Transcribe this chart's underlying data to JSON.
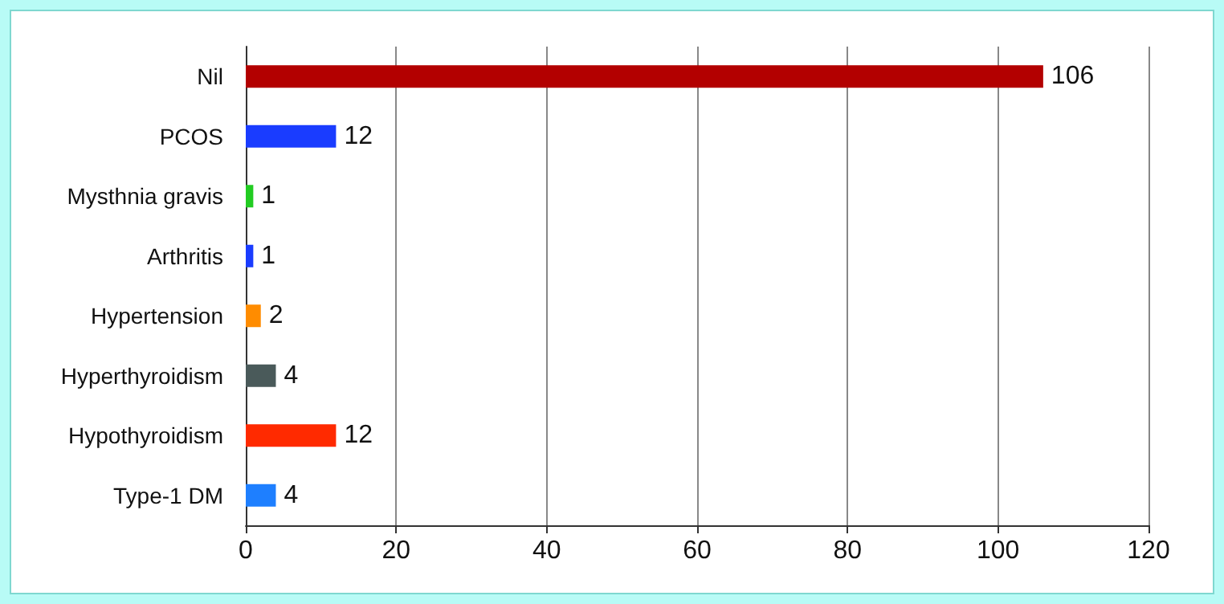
{
  "chart_data": {
    "type": "bar",
    "orientation": "horizontal",
    "categories": [
      "Nil",
      "PCOS",
      "Mysthnia gravis",
      "Arthritis",
      "Hypertension",
      "Hyperthyroidism",
      "Hypothyroidism",
      "Type-1 DM"
    ],
    "values": [
      106,
      12,
      1,
      1,
      2,
      4,
      12,
      4
    ],
    "colors": [
      "#b30000",
      "#1a3cff",
      "#22cc22",
      "#1a3cff",
      "#ff8c00",
      "#4a5a5a",
      "#ff2a00",
      "#1e7fff"
    ],
    "xlim": [
      0,
      120
    ],
    "xticks": [
      0,
      20,
      40,
      60,
      80,
      100,
      120
    ],
    "grid": "x",
    "data_labels": true
  }
}
